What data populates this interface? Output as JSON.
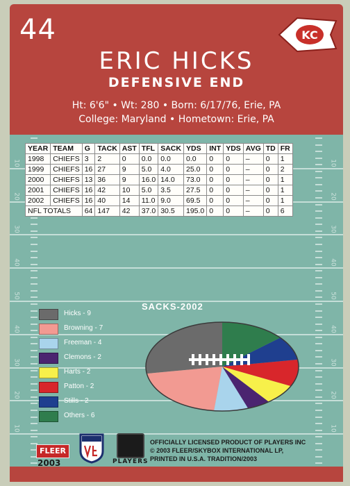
{
  "header": {
    "jersey_number": "44",
    "player_name": "ERIC HICKS",
    "position": "DEFENSIVE END",
    "bio_line1": "Ht: 6'6\"  •  Wt: 280  •  Born: 6/17/76, Erie, PA",
    "bio_line2": "College: Maryland  •  Hometown: Erie, PA",
    "logo_text": "KC"
  },
  "stats": {
    "columns": [
      "YEAR",
      "TEAM",
      "G",
      "TACK",
      "AST",
      "TFL",
      "SACK",
      "YDS",
      "INT",
      "YDS",
      "AVG",
      "TD",
      "FR"
    ],
    "rows": [
      [
        "1998",
        "CHIEFS",
        "3",
        "2",
        "0",
        "0.0",
        "0.0",
        "0.0",
        "0",
        "0",
        "–",
        "0",
        "1"
      ],
      [
        "1999",
        "CHIEFS",
        "16",
        "27",
        "9",
        "5.0",
        "4.0",
        "25.0",
        "0",
        "0",
        "–",
        "0",
        "2"
      ],
      [
        "2000",
        "CHIEFS",
        "13",
        "36",
        "9",
        "16.0",
        "14.0",
        "73.0",
        "0",
        "0",
        "–",
        "0",
        "1"
      ],
      [
        "2001",
        "CHIEFS",
        "16",
        "42",
        "10",
        "5.0",
        "3.5",
        "27.5",
        "0",
        "0",
        "–",
        "0",
        "1"
      ],
      [
        "2002",
        "CHIEFS",
        "16",
        "40",
        "14",
        "11.0",
        "9.0",
        "69.5",
        "0",
        "0",
        "–",
        "0",
        "1"
      ]
    ],
    "totals": [
      "NFL TOTALS",
      "64",
      "147",
      "42",
      "37.0",
      "30.5",
      "195.0",
      "0",
      "0",
      "–",
      "0",
      "6"
    ]
  },
  "field_numbers": [
    "10",
    "20",
    "30",
    "40",
    "50",
    "40",
    "30",
    "20",
    "10"
  ],
  "chart_data": {
    "type": "pie",
    "title": "SACKS-2002",
    "legend_labels": [
      "Hicks - 9",
      "Browning - 7",
      "Freeman - 4",
      "Clemons - 2",
      "Harts - 2",
      "Patton - 2",
      "Stills - 2",
      "Others - 6"
    ],
    "categories": [
      "Hicks",
      "Browning",
      "Freeman",
      "Clemons",
      "Harts",
      "Patton",
      "Stills",
      "Others"
    ],
    "values": [
      9,
      7,
      4,
      2,
      2,
      2,
      2,
      6
    ],
    "colors": [
      "#6b6b6b",
      "#f29a92",
      "#a9d4ec",
      "#4b2470",
      "#f7f04a",
      "#d8262b",
      "#1f3f8f",
      "#2f7d4d"
    ],
    "legend": "left"
  },
  "footer": {
    "brand": "FLEER",
    "year": "2003",
    "players_label": "PLAYERS",
    "legal_line1": "OFFICIALLY LICENSED PRODUCT OF PLAYERS INC",
    "legal_line2": "© 2003 FLEER/SKYBOX INTERNATIONAL LP,",
    "legal_line3": "PRINTED IN U.S.A. TRADITION/2003"
  }
}
